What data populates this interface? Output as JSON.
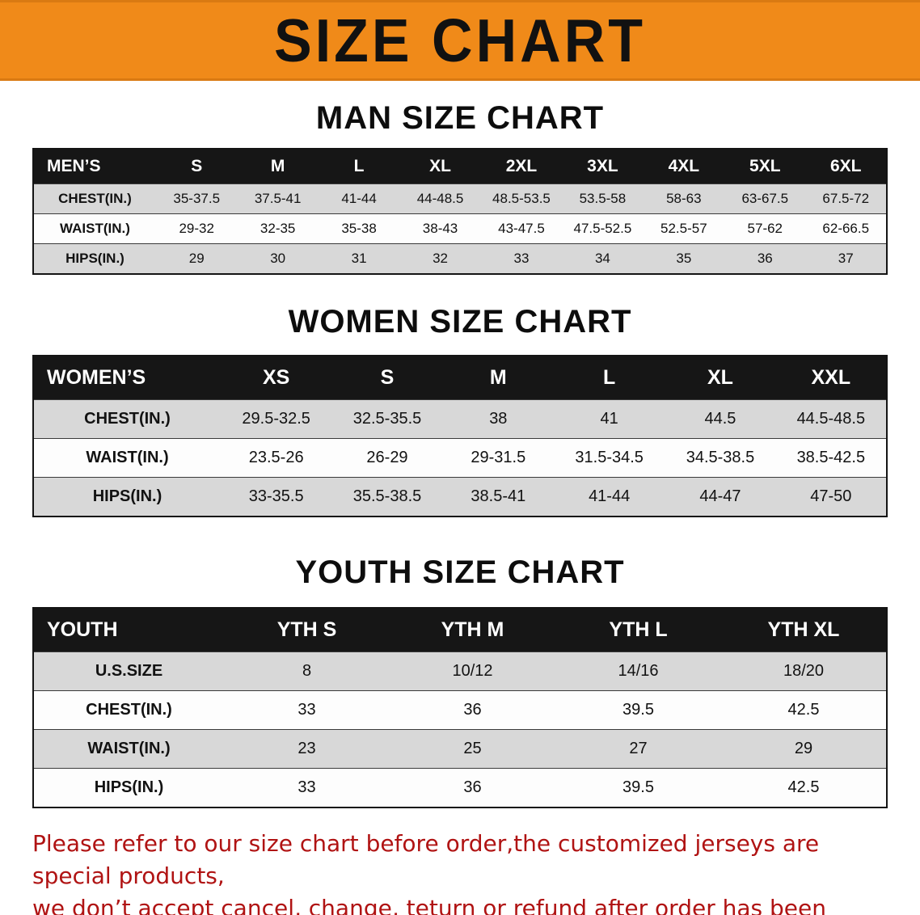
{
  "banner": {
    "title": "SIZE CHART"
  },
  "sections": [
    {
      "heading": "MAN SIZE CHART",
      "table": {
        "header": [
          "MEN’S",
          "S",
          "M",
          "L",
          "XL",
          "2XL",
          "3XL",
          "4XL",
          "5XL",
          "6XL"
        ],
        "rows": [
          {
            "label": "CHEST(IN.)",
            "values": [
              "35-37.5",
              "37.5-41",
              "41-44",
              "44-48.5",
              "48.5-53.5",
              "53.5-58",
              "58-63",
              "63-67.5",
              "67.5-72"
            ]
          },
          {
            "label": "WAIST(IN.)",
            "values": [
              "29-32",
              "32-35",
              "35-38",
              "38-43",
              "43-47.5",
              "47.5-52.5",
              "52.5-57",
              "57-62",
              "62-66.5"
            ]
          },
          {
            "label": "HIPS(IN.)",
            "values": [
              "29",
              "30",
              "31",
              "32",
              "33",
              "34",
              "35",
              "36",
              "37"
            ]
          }
        ]
      }
    },
    {
      "heading": "WOMEN SIZE CHART",
      "table": {
        "header": [
          "WOMEN’S",
          "XS",
          "S",
          "M",
          "L",
          "XL",
          "XXL"
        ],
        "rows": [
          {
            "label": "CHEST(IN.)",
            "values": [
              "29.5-32.5",
              "32.5-35.5",
              "38",
              "41",
              "44.5",
              "44.5-48.5"
            ]
          },
          {
            "label": "WAIST(IN.)",
            "values": [
              "23.5-26",
              "26-29",
              "29-31.5",
              "31.5-34.5",
              "34.5-38.5",
              "38.5-42.5"
            ]
          },
          {
            "label": "HIPS(IN.)",
            "values": [
              "33-35.5",
              "35.5-38.5",
              "38.5-41",
              "41-44",
              "44-47",
              "47-50"
            ]
          }
        ]
      }
    },
    {
      "heading": "YOUTH SIZE CHART",
      "table": {
        "header": [
          "YOUTH",
          "YTH S",
          "YTH M",
          "YTH L",
          "YTH XL"
        ],
        "rows": [
          {
            "label": "U.S.SIZE",
            "values": [
              "8",
              "10/12",
              "14/16",
              "18/20"
            ]
          },
          {
            "label": "CHEST(IN.)",
            "values": [
              "33",
              "36",
              "39.5",
              "42.5"
            ]
          },
          {
            "label": "WAIST(IN.)",
            "values": [
              "23",
              "25",
              "27",
              "29"
            ]
          },
          {
            "label": "HIPS(IN.)",
            "values": [
              "33",
              "36",
              "39.5",
              "42.5"
            ]
          }
        ]
      }
    }
  ],
  "disclaimer": {
    "line1": "Please refer to our size chart before order,the customized jerseys are special products,",
    "line2": "we don’t accept cancel, change, teturn or refund after order has been placed!"
  },
  "colors": {
    "banner_bg": "#f08a19",
    "header_bg": "#161616",
    "shaded_row": "#d8d8d8",
    "disclaimer_text": "#b01313"
  }
}
